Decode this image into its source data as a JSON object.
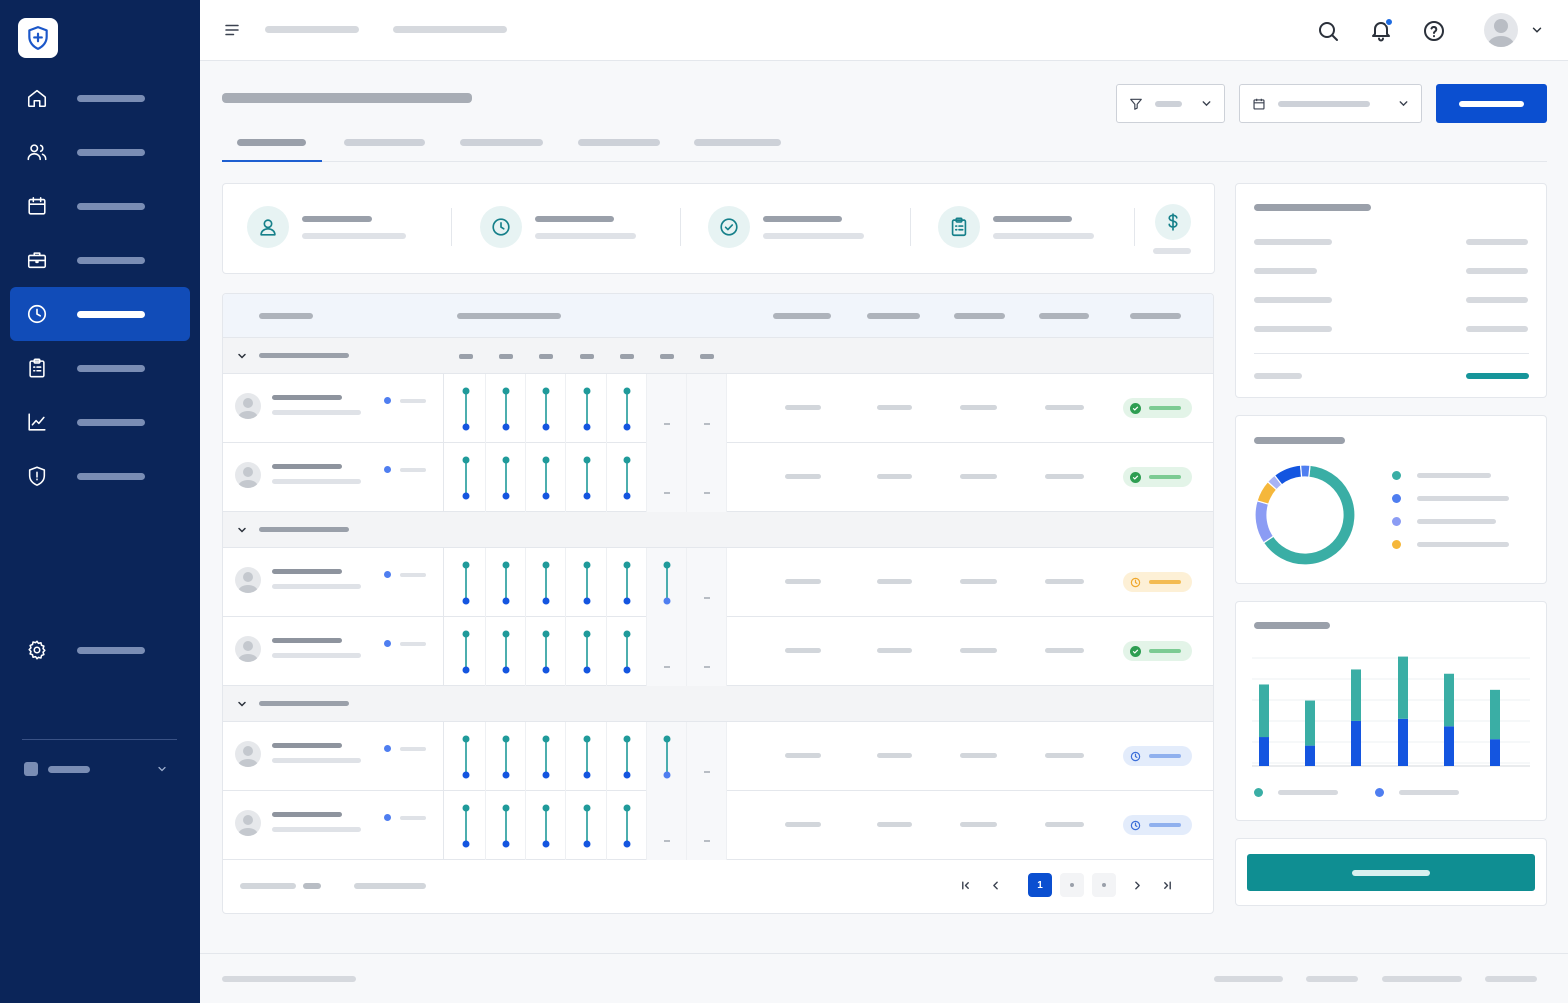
{
  "sidebar": {
    "logo_icon": "shield-plus-icon",
    "items": [
      {
        "icon": "home-icon",
        "active": false
      },
      {
        "icon": "users-icon",
        "active": false
      },
      {
        "icon": "calendar-icon",
        "active": false
      },
      {
        "icon": "briefcase-icon",
        "active": false
      },
      {
        "icon": "clock-icon",
        "active": true
      },
      {
        "icon": "clipboard-icon",
        "active": false
      },
      {
        "icon": "chart-line-icon",
        "active": false
      },
      {
        "icon": "shield-icon",
        "active": false
      },
      {
        "icon": "gear-icon",
        "active": false
      }
    ]
  },
  "topbar": {
    "icons": [
      "menu-icon",
      "search-icon",
      "bell-icon",
      "help-icon",
      "avatar",
      "chevron-down-icon"
    ]
  },
  "pagination": {
    "current_page": "1"
  },
  "colors": {
    "sidebar_bg": "#0b2559",
    "primary": "#0b4fd0",
    "teal": "#0f9393",
    "teal_light": "#3aaea5",
    "blue": "#1455e0",
    "status_ok": "#2e9e52",
    "status_warn": "#f0a82d",
    "status_pending": "#3c6ed8"
  },
  "chart_data": [
    {
      "type": "pie",
      "segments": [
        {
          "color": "#3aaea5",
          "value": 64
        },
        {
          "color": "#8b9cf4",
          "value": 14
        },
        {
          "color": "#f5b73b",
          "value": 7
        },
        {
          "color": "#a8b3f5",
          "value": 3
        },
        {
          "color": "#1455e0",
          "value": 9
        },
        {
          "color": "#4f7ef0",
          "value": 3
        }
      ],
      "donut": true,
      "legend_placement": "right"
    },
    {
      "type": "bar",
      "stacked": true,
      "categories": [
        "",
        "",
        "",
        "",
        "",
        ""
      ],
      "series": [
        {
          "color": "#1455e0",
          "values": [
            27,
            19,
            42,
            44,
            37,
            25
          ]
        },
        {
          "color": "#3aaea5",
          "values": [
            49,
            42,
            48,
            58,
            49,
            46
          ]
        }
      ],
      "ylim": [
        0,
        110
      ],
      "grid": true,
      "legend_placement": "bottom"
    }
  ]
}
